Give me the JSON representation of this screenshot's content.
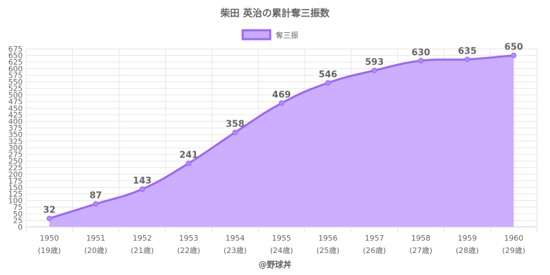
{
  "chart_data": {
    "type": "area",
    "title": "柴田 英治の累計奪三振数",
    "credit": "@野球丼",
    "series": [
      {
        "name": "奪三振",
        "values": [
          32,
          87,
          143,
          241,
          358,
          469,
          546,
          593,
          630,
          635,
          650
        ]
      }
    ],
    "categories": [
      "1950",
      "1951",
      "1952",
      "1953",
      "1954",
      "1955",
      "1956",
      "1957",
      "1958",
      "1959",
      "1960"
    ],
    "category_sublabels": [
      "(19歳)",
      "(20歳)",
      "(21歳)",
      "(22歳)",
      "(23歳)",
      "(24歳)",
      "(25歳)",
      "(26歳)",
      "(27歳)",
      "(28歳)",
      "(29歳)"
    ],
    "ylim": [
      0,
      675
    ],
    "ytick_step": 25,
    "grid": true,
    "legend_position": "top",
    "colors": {
      "line": "#9966ff",
      "fill": "#c9aaff",
      "point": "#b388ff"
    }
  }
}
